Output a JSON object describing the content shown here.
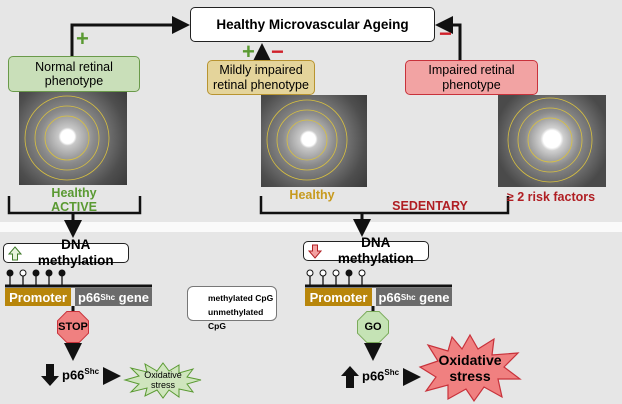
{
  "title": "Healthy Microvascular Ageing",
  "phenotypes": [
    {
      "label": "Normal retinal phenotype",
      "sign": "+",
      "caption_1": "Healthy",
      "caption_2": "ACTIVE",
      "color": "#5a9a32"
    },
    {
      "label": "Mildly impaired retinal phenotype",
      "sign_plus": "+",
      "sign_minus": "−",
      "caption_1": "Healthy",
      "color": "#c79a1e"
    },
    {
      "label": "Impaired retinal phenotype",
      "sign": "−",
      "caption_1": "≥ 2 risk factors",
      "color": "#b01e23"
    }
  ],
  "group_sedentary": "SEDENTARY",
  "left": {
    "dna_label": "DNA methylation",
    "arrow_icon": "up-arrow-icon",
    "cpg": [
      true,
      false,
      true,
      true,
      true
    ],
    "promoter": "Promoter",
    "gene": "p66",
    "gene_sup": "Shc",
    "signal": "STOP",
    "p66": "p66",
    "p66_sup": "Shc",
    "outcome": "Oxidative stress"
  },
  "right": {
    "dna_label": "DNA methylation",
    "arrow_icon": "down-arrow-icon",
    "cpg": [
      false,
      false,
      false,
      true,
      false
    ],
    "promoter": "Promoter",
    "gene": "p66",
    "gene_sup": "Shc",
    "signal": "GO",
    "p66": "p66",
    "p66_sup": "Shc",
    "outcome": "Oxidative stress"
  },
  "legend": {
    "methylated": "methylated CpG",
    "unmethylated": "unmethylated CpG"
  },
  "gene_suffix": "gene",
  "colors": {
    "promoter": "#b8860b",
    "gene": "#6b6b6b",
    "plus": "#5a9a32",
    "minus": "#d0202a",
    "stop": "#f08080",
    "go": "#c5e3b5"
  }
}
